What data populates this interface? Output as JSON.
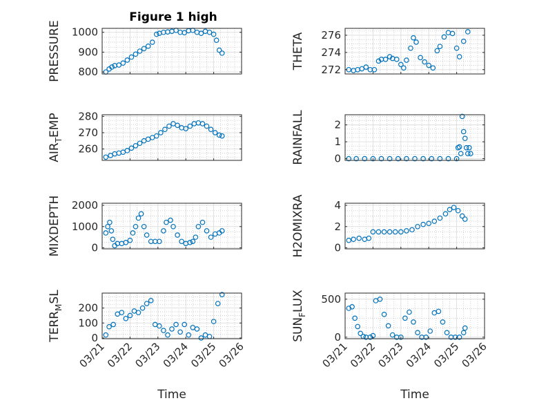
{
  "figure": {
    "title": "Figure 1 high",
    "marker_color": "#0072BD"
  },
  "chart_data": [
    {
      "type": "scatter",
      "name": "pressure",
      "title": "Figure 1 high",
      "ylabel": "PRESSURE",
      "xlabel": "",
      "ylim": [
        790,
        1020
      ],
      "yticks": [
        "800",
        "900",
        "1000"
      ],
      "ytick_values": [
        800,
        900,
        1000
      ],
      "xlim": [
        0,
        5
      ],
      "x_ticklabels_shown": false,
      "grid": "on, minor dotted",
      "x": [
        0.13,
        0.25,
        0.35,
        0.45,
        0.6,
        0.75,
        0.9,
        1.05,
        1.2,
        1.35,
        1.5,
        1.65,
        1.8,
        1.95,
        2.05,
        2.2,
        2.35,
        2.5,
        2.65,
        2.8,
        2.95,
        3.1,
        3.25,
        3.4,
        3.55,
        3.7,
        3.85,
        4.0,
        4.1,
        4.2,
        4.3
      ],
      "y": [
        800,
        815,
        825,
        832,
        835,
        845,
        860,
        875,
        890,
        905,
        918,
        930,
        950,
        990,
        995,
        1000,
        1002,
        1005,
        1010,
        1000,
        998,
        1008,
        1010,
        1000,
        995,
        1005,
        1000,
        990,
        960,
        910,
        895
      ]
    },
    {
      "type": "scatter",
      "name": "theta",
      "title": "",
      "ylabel": "THETA",
      "xlabel": "",
      "ylim": [
        271.5,
        276.8
      ],
      "yticks": [
        "272",
        "274",
        "276"
      ],
      "ytick_values": [
        272,
        274,
        276
      ],
      "xlim": [
        0,
        5
      ],
      "x_ticklabels_shown": false,
      "grid": "on, minor dotted",
      "x": [
        0.13,
        0.3,
        0.45,
        0.6,
        0.75,
        0.9,
        1.05,
        1.2,
        1.3,
        1.45,
        1.6,
        1.7,
        1.85,
        2.0,
        2.1,
        2.2,
        2.35,
        2.45,
        2.55,
        2.7,
        2.85,
        3.0,
        3.15,
        3.3,
        3.4,
        3.55,
        3.7,
        3.85,
        4.0,
        4.1,
        4.25,
        4.4
      ],
      "y": [
        272.0,
        271.9,
        272.0,
        272.1,
        272.3,
        272.0,
        272.0,
        273.0,
        273.2,
        273.2,
        273.5,
        273.3,
        273.2,
        272.6,
        272.2,
        273.1,
        274.5,
        275.7,
        275.2,
        273.4,
        272.9,
        272.5,
        272.2,
        274.2,
        274.7,
        275.8,
        276.3,
        276.2,
        274.5,
        273.5,
        275.3,
        276.4
      ]
    },
    {
      "type": "scatter",
      "name": "air_temp",
      "title": "",
      "ylabel_main": "AIR",
      "ylabel_sub": "T",
      "ylabel_tail": "EMP",
      "xlabel": "",
      "ylim": [
        253,
        281
      ],
      "yticks": [
        "260",
        "270",
        "280"
      ],
      "ytick_values": [
        260,
        270,
        280
      ],
      "xlim": [
        0,
        5
      ],
      "x_ticklabels_shown": false,
      "grid": "on, minor dotted",
      "x": [
        0.13,
        0.3,
        0.45,
        0.6,
        0.75,
        0.9,
        1.05,
        1.2,
        1.35,
        1.5,
        1.65,
        1.8,
        1.95,
        2.1,
        2.25,
        2.4,
        2.55,
        2.7,
        2.85,
        3.0,
        3.15,
        3.3,
        3.45,
        3.6,
        3.75,
        3.9,
        4.05,
        4.2,
        4.3
      ],
      "y": [
        255,
        256,
        257,
        257.5,
        258,
        259,
        260.5,
        262,
        263.5,
        265,
        266,
        267,
        268,
        270,
        272,
        274,
        275.5,
        274.5,
        273,
        272.5,
        274,
        275.5,
        276,
        275.5,
        274,
        272,
        270,
        268.5,
        268
      ]
    },
    {
      "type": "scatter",
      "name": "rainfall",
      "title": "",
      "ylabel": "RAINFALL",
      "xlabel": "",
      "ylim": [
        -0.1,
        2.6
      ],
      "yticks": [
        "0",
        "1",
        "2"
      ],
      "ytick_values": [
        0,
        1,
        2
      ],
      "xlim": [
        0,
        5
      ],
      "x_ticklabels_shown": false,
      "grid": "on, minor dotted",
      "x": [
        0.13,
        0.4,
        0.7,
        1.0,
        1.3,
        1.6,
        1.9,
        2.2,
        2.5,
        2.8,
        3.1,
        3.4,
        3.7,
        4.0,
        4.05,
        4.1,
        4.15,
        4.2,
        4.25,
        4.3,
        4.35,
        4.4,
        4.45,
        4.5
      ],
      "y": [
        0,
        0,
        0,
        0,
        0,
        0,
        0,
        0,
        0,
        0,
        0,
        0,
        0,
        0,
        0.65,
        0.7,
        0.3,
        2.5,
        1.6,
        1.2,
        0.65,
        0.3,
        0.65,
        0.3
      ]
    },
    {
      "type": "scatter",
      "name": "mixdepth",
      "title": "",
      "ylabel": "MIXDEPTH",
      "xlabel": "",
      "ylim": [
        -50,
        2100
      ],
      "yticks": [
        "0",
        "1000",
        "2000"
      ],
      "ytick_values": [
        0,
        1000,
        2000
      ],
      "xlim": [
        0,
        5
      ],
      "x_ticklabels_shown": false,
      "grid": "on, minor dotted",
      "x": [
        0.13,
        0.2,
        0.27,
        0.33,
        0.38,
        0.45,
        0.55,
        0.7,
        0.85,
        1.0,
        1.1,
        1.2,
        1.3,
        1.4,
        1.5,
        1.6,
        1.75,
        1.9,
        2.05,
        2.2,
        2.3,
        2.45,
        2.55,
        2.7,
        2.85,
        3.0,
        3.15,
        3.25,
        3.35,
        3.45,
        3.6,
        3.75,
        3.9,
        4.05,
        4.2,
        4.3
      ],
      "y": [
        700,
        1000,
        1200,
        800,
        400,
        100,
        200,
        200,
        250,
        350,
        700,
        1000,
        1400,
        1600,
        1000,
        600,
        300,
        300,
        300,
        800,
        1200,
        1300,
        1000,
        600,
        300,
        200,
        250,
        300,
        500,
        1000,
        1200,
        800,
        500,
        650,
        700,
        800
      ]
    },
    {
      "type": "scatter",
      "name": "h2omixra",
      "title": "",
      "ylabel": "H2OMIXRA",
      "xlabel": "",
      "ylim": [
        -0.1,
        4.2
      ],
      "yticks": [
        "0",
        "2",
        "4"
      ],
      "ytick_values": [
        0,
        2,
        4
      ],
      "xlim": [
        0,
        5
      ],
      "x_ticklabels_shown": false,
      "grid": "on, minor dotted",
      "x": [
        0.13,
        0.3,
        0.5,
        0.7,
        0.85,
        1.0,
        1.2,
        1.4,
        1.6,
        1.8,
        2.0,
        2.2,
        2.4,
        2.6,
        2.8,
        3.0,
        3.2,
        3.4,
        3.6,
        3.75,
        3.9,
        4.05,
        4.2,
        4.3
      ],
      "y": [
        0.7,
        0.8,
        0.9,
        0.8,
        0.9,
        1.5,
        1.5,
        1.5,
        1.5,
        1.5,
        1.5,
        1.6,
        1.7,
        2.0,
        2.2,
        2.3,
        2.5,
        2.8,
        3.2,
        3.6,
        3.8,
        3.5,
        3.0,
        2.7
      ]
    },
    {
      "type": "scatter",
      "name": "terr_msl",
      "title": "",
      "ylabel_main": "TERR",
      "ylabel_sub": "M",
      "ylabel_tail": "SL",
      "xlabel": "Time",
      "ylim": [
        -5,
        300
      ],
      "yticks": [
        "0",
        "100",
        "200"
      ],
      "ytick_values": [
        0,
        100,
        200
      ],
      "xlim": [
        0,
        5
      ],
      "xticks": [
        "03/21",
        "03/22",
        "03/23",
        "03/24",
        "03/25",
        "03/26"
      ],
      "xtick_values": [
        0,
        1,
        2,
        3,
        4,
        5
      ],
      "grid": "on, minor dotted",
      "x": [
        0.13,
        0.25,
        0.4,
        0.55,
        0.7,
        0.85,
        1.0,
        1.15,
        1.3,
        1.45,
        1.6,
        1.75,
        1.9,
        2.05,
        2.2,
        2.35,
        2.5,
        2.65,
        2.8,
        2.95,
        3.1,
        3.25,
        3.4,
        3.55,
        3.7,
        3.85,
        4.0,
        4.15,
        4.3
      ],
      "y": [
        20,
        75,
        90,
        160,
        170,
        130,
        150,
        180,
        170,
        200,
        230,
        250,
        90,
        80,
        50,
        20,
        60,
        90,
        40,
        90,
        20,
        70,
        60,
        0,
        20,
        10,
        110,
        230,
        290
      ]
    },
    {
      "type": "scatter",
      "name": "sun_flux",
      "title": "",
      "ylabel_main": "SUN",
      "ylabel_sub": "F",
      "ylabel_tail": "LUX",
      "xlabel": "Time",
      "ylim": [
        -20,
        580
      ],
      "yticks": [
        "0",
        "500"
      ],
      "ytick_values": [
        0,
        500
      ],
      "xlim": [
        0,
        5
      ],
      "xticks": [
        "03/21",
        "03/22",
        "03/23",
        "03/24",
        "03/25",
        "03/26"
      ],
      "xtick_values": [
        0,
        1,
        2,
        3,
        4,
        5
      ],
      "grid": "on, minor dotted",
      "x": [
        0.13,
        0.25,
        0.35,
        0.45,
        0.55,
        0.65,
        0.75,
        0.9,
        1.0,
        1.1,
        1.25,
        1.4,
        1.55,
        1.7,
        1.85,
        2.0,
        2.15,
        2.3,
        2.45,
        2.6,
        2.75,
        2.9,
        3.05,
        3.2,
        3.35,
        3.5,
        3.65,
        3.8,
        3.95,
        4.1,
        4.25,
        4.3
      ],
      "y": [
        380,
        400,
        250,
        140,
        50,
        10,
        0,
        0,
        20,
        480,
        500,
        300,
        150,
        30,
        0,
        0,
        250,
        330,
        200,
        60,
        0,
        0,
        80,
        320,
        340,
        200,
        60,
        0,
        0,
        0,
        60,
        120
      ]
    }
  ]
}
